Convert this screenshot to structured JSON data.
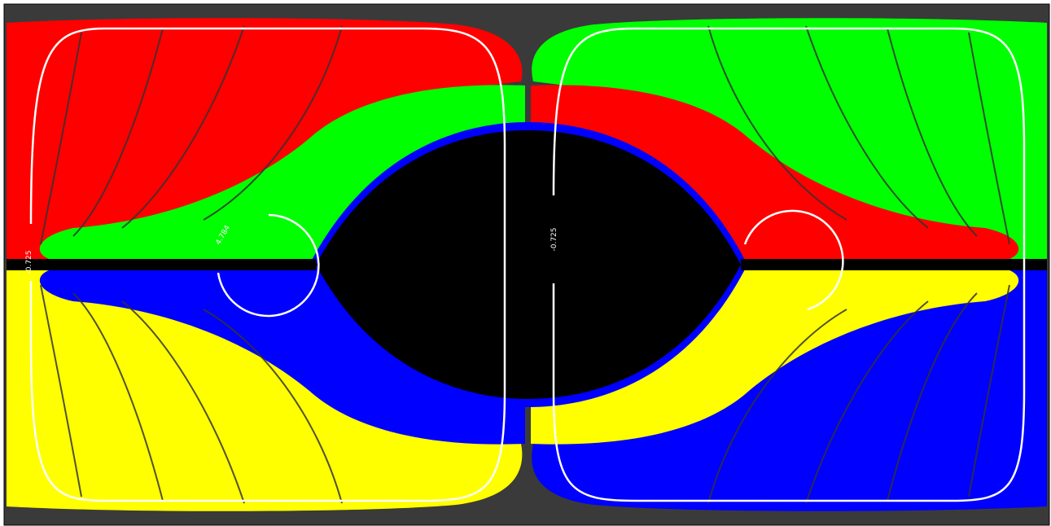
{
  "contour_labels": [
    "-0.725",
    "4.784",
    "-0.725"
  ]
}
